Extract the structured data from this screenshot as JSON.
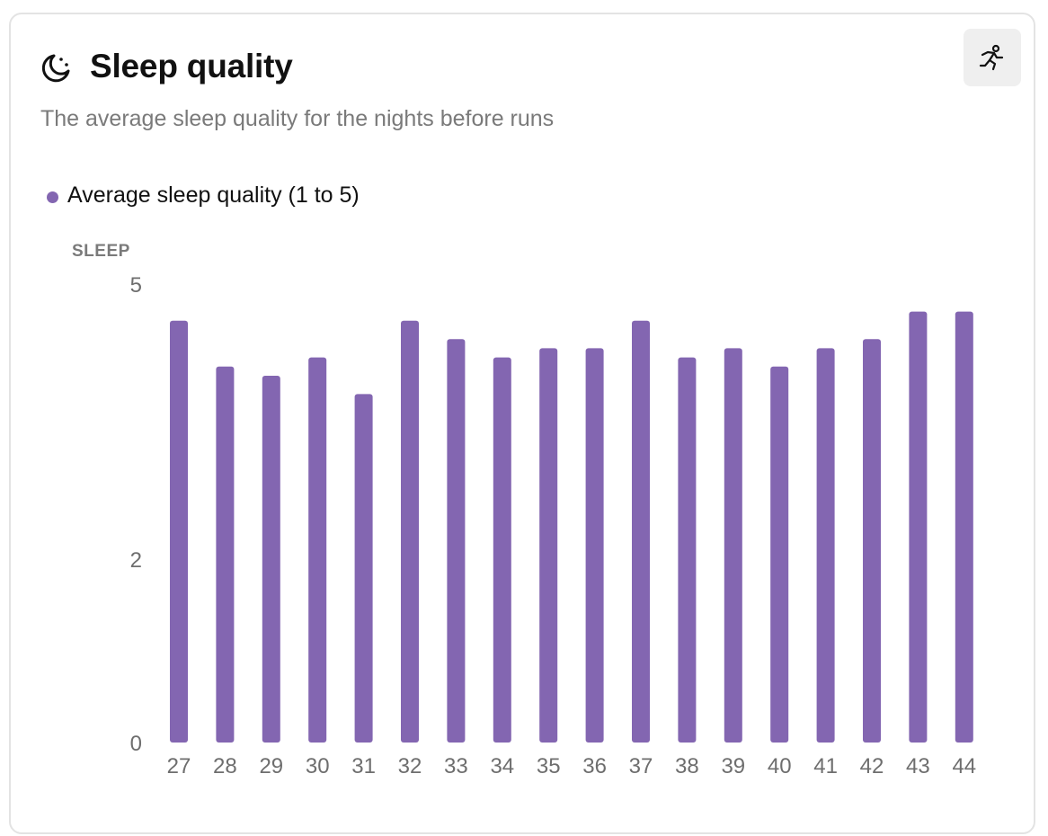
{
  "card": {
    "title": "Sleep quality",
    "subtitle": "The average sleep quality for the nights before runs",
    "title_icon": "moon-icon",
    "action_icon": "running-person-icon"
  },
  "legend": {
    "label": "Average sleep quality (1 to 5)",
    "color": "#8366b1"
  },
  "chart_data": {
    "type": "bar",
    "title": "",
    "xlabel": "",
    "ylabel": "SLEEP",
    "ylim": [
      0,
      5
    ],
    "yticks": [
      0,
      2,
      5
    ],
    "grid": false,
    "categories": [
      "27",
      "28",
      "29",
      "30",
      "31",
      "32",
      "33",
      "34",
      "35",
      "36",
      "37",
      "38",
      "39",
      "40",
      "41",
      "42",
      "43",
      "44"
    ],
    "series": [
      {
        "name": "Average sleep quality (1 to 5)",
        "color": "#8366b1",
        "values": [
          4.6,
          4.1,
          4.0,
          4.2,
          3.8,
          4.6,
          4.4,
          4.2,
          4.3,
          4.3,
          4.6,
          4.2,
          4.3,
          4.1,
          4.3,
          4.4,
          4.7,
          4.7
        ]
      }
    ]
  }
}
